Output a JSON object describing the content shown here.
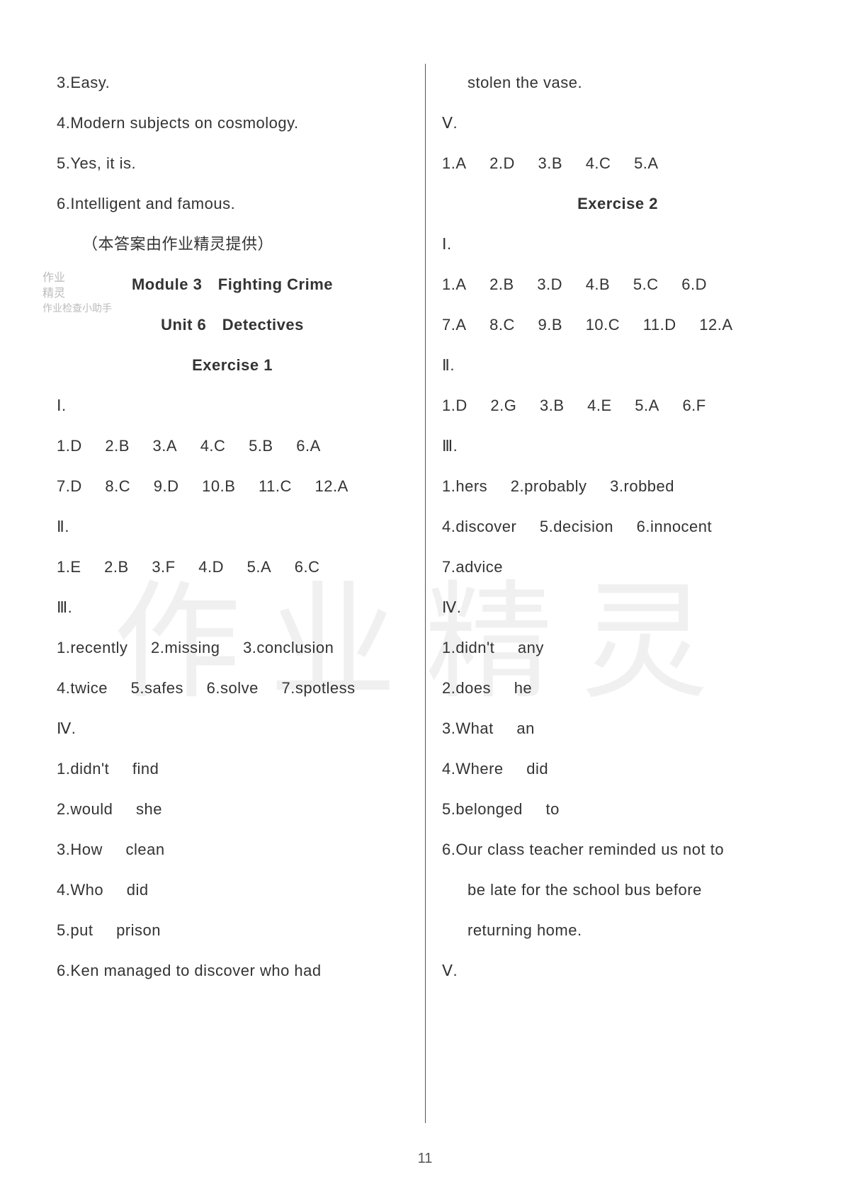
{
  "pageNumber": "11",
  "stamp": {
    "l1": "作业",
    "l2": "精灵",
    "l3": "作业检查小助手"
  },
  "watermark": "作业精灵",
  "left": {
    "p3": "3.Easy.",
    "p4": "4.Modern subjects on cosmology.",
    "p5": "5.Yes, it is.",
    "p6": "6.Intelligent and famous.",
    "note": "（本答案由作业精灵提供）",
    "module": "Module 3　Fighting Crime",
    "unit": "Unit 6　Detectives",
    "ex1": "Exercise 1",
    "sec1": "Ⅰ.",
    "s1r1": [
      "1.D",
      "2.B",
      "3.A",
      "4.C",
      "5.B",
      "6.A"
    ],
    "s1r2": [
      "7.D",
      "8.C",
      "9.D",
      "10.B",
      "11.C",
      "12.A"
    ],
    "sec2": "Ⅱ.",
    "s2r1": [
      "1.E",
      "2.B",
      "3.F",
      "4.D",
      "5.A",
      "6.C"
    ],
    "sec3": "Ⅲ.",
    "s3r1": [
      "1.recently",
      "2.missing",
      "3.conclusion"
    ],
    "s3r2": [
      "4.twice",
      "5.safes",
      "6.solve",
      "7.spotless"
    ],
    "sec4": "Ⅳ.",
    "s4_1": [
      "1.didn't",
      "find"
    ],
    "s4_2": [
      "2.would",
      "she"
    ],
    "s4_3": [
      "3.How",
      "clean"
    ],
    "s4_4": [
      "4.Who",
      "did"
    ],
    "s4_5": [
      "5.put",
      "prison"
    ],
    "s4_6": "6.Ken managed to discover who had"
  },
  "right": {
    "cont": "stolen the vase.",
    "sec5": "Ⅴ.",
    "s5r1": [
      "1.A",
      "2.D",
      "3.B",
      "4.C",
      "5.A"
    ],
    "ex2": "Exercise 2",
    "sec1": "Ⅰ.",
    "s1r1": [
      "1.A",
      "2.B",
      "3.D",
      "4.B",
      "5.C",
      "6.D"
    ],
    "s1r2": [
      "7.A",
      "8.C",
      "9.B",
      "10.C",
      "11.D",
      "12.A"
    ],
    "sec2": "Ⅱ.",
    "s2r1": [
      "1.D",
      "2.G",
      "3.B",
      "4.E",
      "5.A",
      "6.F"
    ],
    "sec3": "Ⅲ.",
    "s3r1": [
      "1.hers",
      "2.probably",
      "3.robbed"
    ],
    "s3r2": [
      "4.discover",
      "5.decision",
      "6.innocent"
    ],
    "s3r3": "7.advice",
    "sec4": "Ⅳ.",
    "s4_1": [
      "1.didn't",
      "any"
    ],
    "s4_2": [
      "2.does",
      "he"
    ],
    "s4_3": [
      "3.What",
      "an"
    ],
    "s4_4": [
      "4.Where",
      "did"
    ],
    "s4_5": [
      "5.belonged",
      "to"
    ],
    "s4_6a": "6.Our class teacher reminded us not to",
    "s4_6b": "be late for the school bus before",
    "s4_6c": "returning home."
  }
}
